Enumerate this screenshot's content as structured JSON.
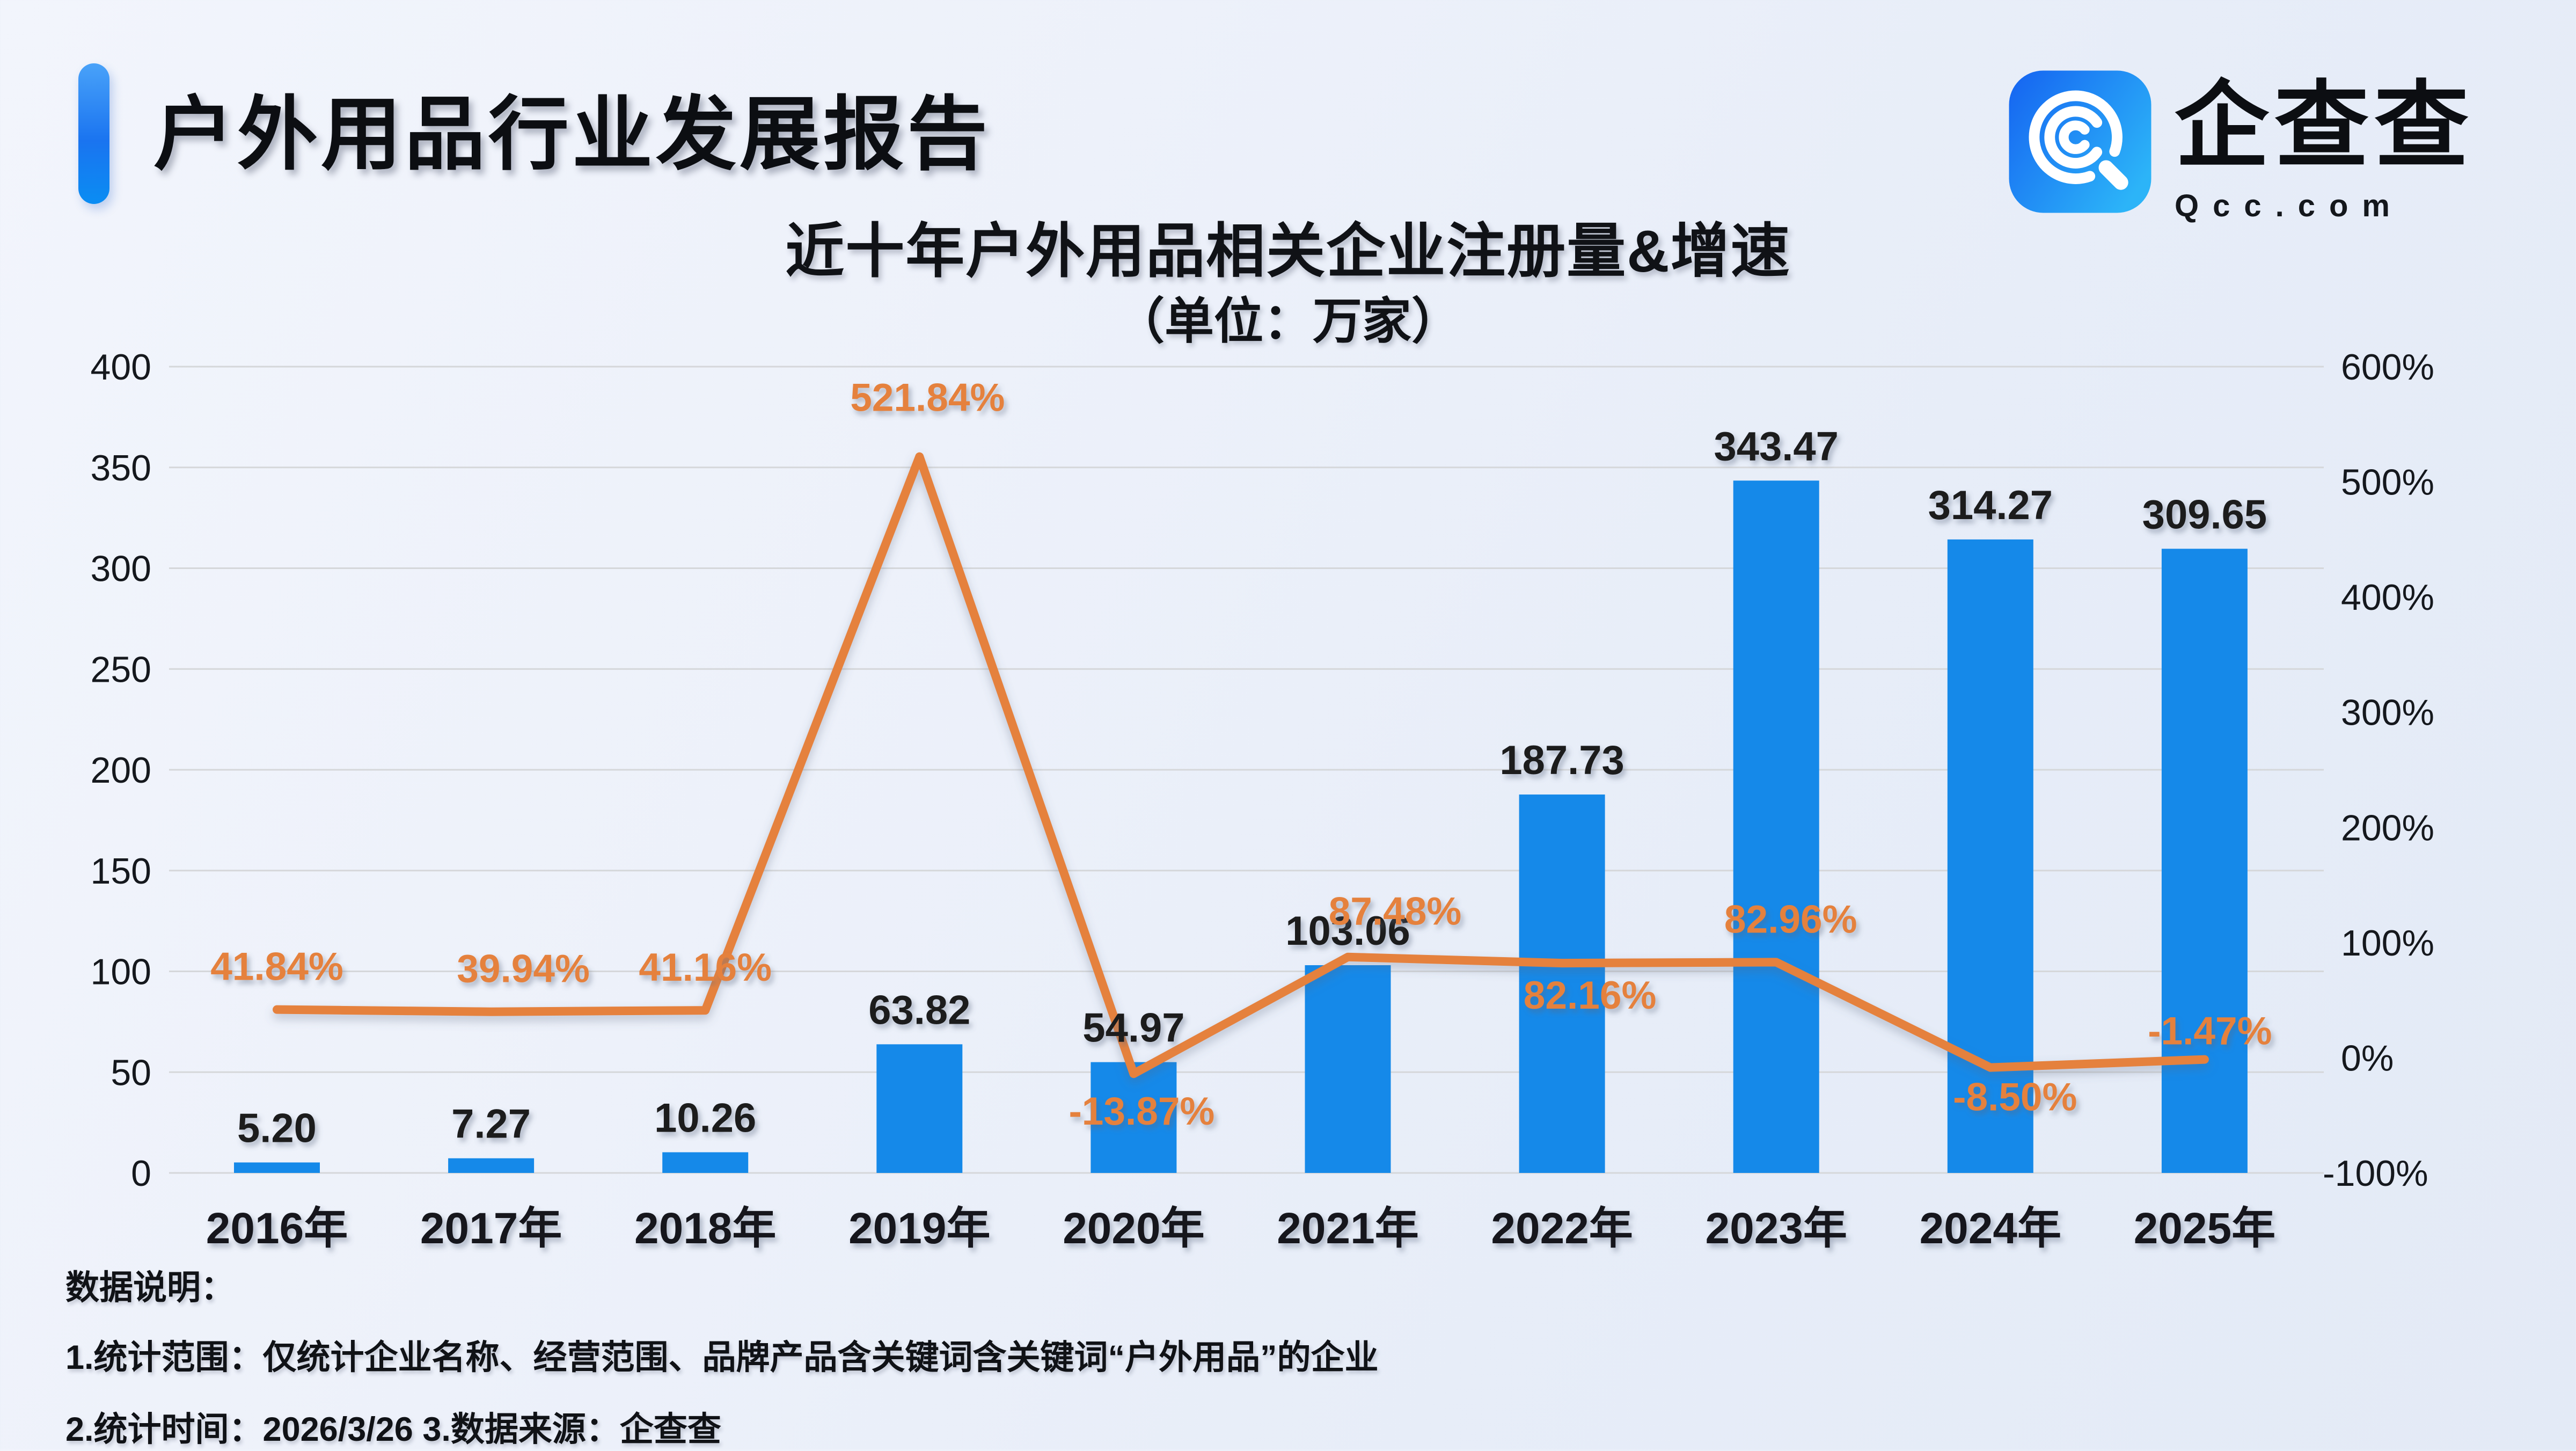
{
  "header": {
    "title": "户外用品行业发展报告"
  },
  "logo": {
    "brand": "企查查",
    "domain": "Qcc.com",
    "icon": "qcc-magnifier-spiral-icon"
  },
  "chart": {
    "title": "近十年户外用品相关企业注册量&增速",
    "subtitle": "（单位：万家）"
  },
  "chart_data": {
    "type": "bar+line",
    "title": "近十年户外用品相关企业注册量&增速",
    "subtitle": "（单位：万家）",
    "unit": "万家",
    "categories": [
      "2016年",
      "2017年",
      "2018年",
      "2019年",
      "2020年",
      "2021年",
      "2022年",
      "2023年",
      "2024年",
      "2025年"
    ],
    "series": [
      {
        "name": "注册量",
        "type": "bar",
        "values": [
          5.2,
          7.27,
          10.26,
          63.82,
          54.97,
          103.06,
          187.73,
          343.47,
          314.27,
          309.65
        ],
        "labels": [
          "5.20",
          "7.27",
          "10.26",
          "63.82",
          "54.97",
          "103.06",
          "187.73",
          "343.47",
          "314.27",
          "309.65"
        ],
        "color": "#1589e9",
        "axis": "left"
      },
      {
        "name": "增速",
        "type": "line",
        "values": [
          41.84,
          39.94,
          41.16,
          521.84,
          -13.87,
          87.48,
          82.16,
          82.96,
          -8.5,
          -1.47
        ],
        "labels": [
          "41.84%",
          "39.94%",
          "41.16%",
          "521.84%",
          "-13.87%",
          "87.48%",
          "82.16%",
          "82.96%",
          "-8.50%",
          "-1.47%"
        ],
        "color": "#e5813c",
        "axis": "right",
        "label_offsets": [
          [
            0,
            -55
          ],
          [
            60,
            -55
          ],
          [
            0,
            -55
          ],
          [
            15,
            -85
          ],
          [
            15,
            95
          ],
          [
            88,
            -60
          ],
          [
            52,
            85
          ],
          [
            27,
            -55
          ],
          [
            46,
            80
          ],
          [
            10,
            -28
          ]
        ]
      }
    ],
    "left_axis": {
      "ticks": [
        "400",
        "350",
        "300",
        "250",
        "200",
        "150",
        "100",
        "50",
        "0"
      ],
      "min": 0,
      "max": 400
    },
    "right_axis": {
      "ticks": [
        "600%",
        "500%",
        "400%",
        "300%",
        "200%",
        "100%",
        "0%",
        "-100%"
      ],
      "min": -100,
      "max": 600
    },
    "grid": true,
    "legend_position": "none",
    "colors": {
      "grid": "#d5d7da",
      "bar": "#1589e9",
      "line": "#e5813c",
      "value_label": "#1b1b1b",
      "axis_label": "#15181d"
    }
  },
  "footer": {
    "heading": "数据说明：",
    "line1": "1.统计范围：仅统计企业名称、经营范围、品牌产品含关键词含关键词“户外用品”的企业",
    "line2": "2.统计时间：2026/3/26  3.数据来源：企查查"
  }
}
